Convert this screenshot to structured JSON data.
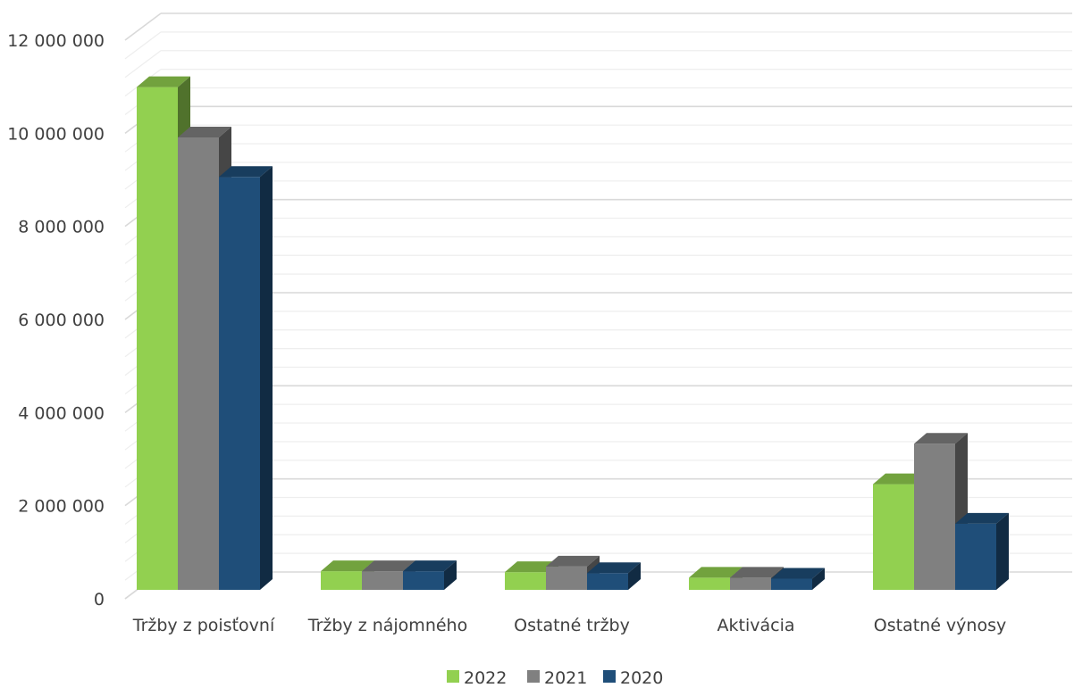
{
  "chart_data": {
    "type": "bar",
    "categories": [
      "Tržby z poisťovní",
      "Tržby z nájomného",
      "Ostatné tržby",
      "Aktivácia",
      "Ostatné výnosy"
    ],
    "series": [
      {
        "name": "2022",
        "color": "#92D050",
        "values": [
          10800000,
          400000,
          380000,
          260000,
          2270000
        ]
      },
      {
        "name": "2021",
        "color": "#808080",
        "values": [
          9720000,
          400000,
          500000,
          260000,
          3140000
        ]
      },
      {
        "name": "2020",
        "color": "#1F4E79",
        "values": [
          8870000,
          400000,
          360000,
          240000,
          1420000
        ]
      }
    ],
    "y_ticks": [
      "0",
      "2 000 000",
      "4 000 000",
      "6 000 000",
      "8 000 000",
      "10 000 000",
      "12 000 000"
    ],
    "ylim": [
      0,
      12000000
    ],
    "grid": true,
    "legend": "bottom",
    "style": "3d-column"
  }
}
